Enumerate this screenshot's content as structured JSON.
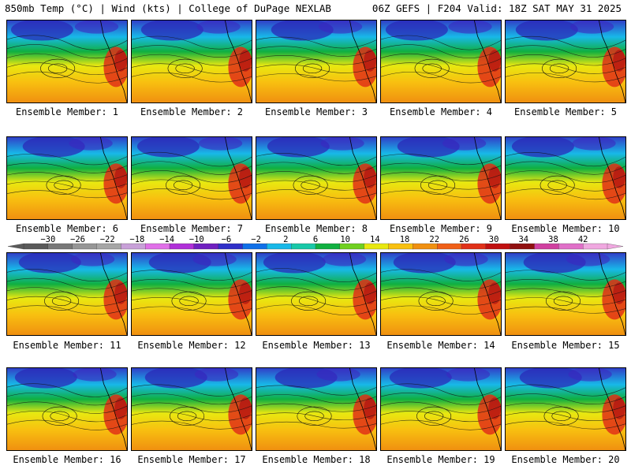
{
  "header": {
    "left_title": "850mb Temp (°C) | Wind (kts) | College of DuPage NEXLAB",
    "right_title": "06Z GEFS | F204 Valid: 18Z SAT MAY 31 2025"
  },
  "members": [
    "Ensemble Member: 1",
    "Ensemble Member: 2",
    "Ensemble Member: 3",
    "Ensemble Member: 4",
    "Ensemble Member: 5",
    "Ensemble Member: 6",
    "Ensemble Member: 7",
    "Ensemble Member: 8",
    "Ensemble Member: 9",
    "Ensemble Member: 10",
    "Ensemble Member: 11",
    "Ensemble Member: 12",
    "Ensemble Member: 13",
    "Ensemble Member: 14",
    "Ensemble Member: 15",
    "Ensemble Member: 16",
    "Ensemble Member: 17",
    "Ensemble Member: 18",
    "Ensemble Member: 19",
    "Ensemble Member: 20"
  ],
  "colorbar": {
    "labels": [
      "−30",
      "−26",
      "−22",
      "−18",
      "−14",
      "−10",
      "−6",
      "−2",
      "2",
      "6",
      "10",
      "14",
      "18",
      "22",
      "26",
      "30",
      "34",
      "38",
      "42"
    ],
    "colors": [
      "#5a5a5a",
      "#787878",
      "#969696",
      "#a6a6a6",
      "#c8a0d8",
      "#e070e8",
      "#b030d8",
      "#7020c0",
      "#3030c8",
      "#1070e8",
      "#18b8e8",
      "#18c8a8",
      "#10b040",
      "#70d020",
      "#e8e810",
      "#f8c010",
      "#f09010",
      "#f06018",
      "#e03018",
      "#c01010",
      "#901010",
      "#d040a0",
      "#e070c8",
      "#f0a8e0"
    ]
  }
}
